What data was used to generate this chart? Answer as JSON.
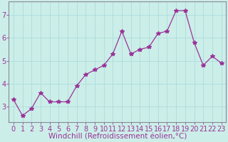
{
  "x": [
    0,
    1,
    2,
    3,
    4,
    5,
    6,
    7,
    8,
    9,
    10,
    11,
    12,
    13,
    14,
    15,
    16,
    17,
    18,
    19,
    20,
    21,
    22,
    23
  ],
  "y": [
    3.3,
    2.6,
    2.9,
    3.6,
    3.2,
    3.2,
    3.2,
    3.9,
    4.4,
    4.6,
    4.8,
    5.3,
    6.3,
    5.3,
    5.5,
    5.6,
    6.2,
    6.3,
    7.2,
    7.2,
    5.8,
    4.8,
    5.2,
    4.9
  ],
  "x_labels": [
    "0",
    "1",
    "2",
    "3",
    "4",
    "5",
    "6",
    "7",
    "8",
    "9",
    "10",
    "11",
    "12",
    "13",
    "14",
    "15",
    "16",
    "17",
    "18",
    "19",
    "20",
    "21",
    "22",
    "23"
  ],
  "xlabel": "Windchill (Refroidissement éolien,°C)",
  "ylim": [
    2.3,
    7.6
  ],
  "yticks": [
    3,
    4,
    5,
    6,
    7
  ],
  "line_color": "#993399",
  "marker": "*",
  "marker_size": 4,
  "bg_color": "#cceee8",
  "grid_color": "#aadddd",
  "label_color": "#993399",
  "tick_color": "#993399",
  "font_size_xlabel": 7.5,
  "font_size_tick": 7,
  "spine_color": "#888899"
}
